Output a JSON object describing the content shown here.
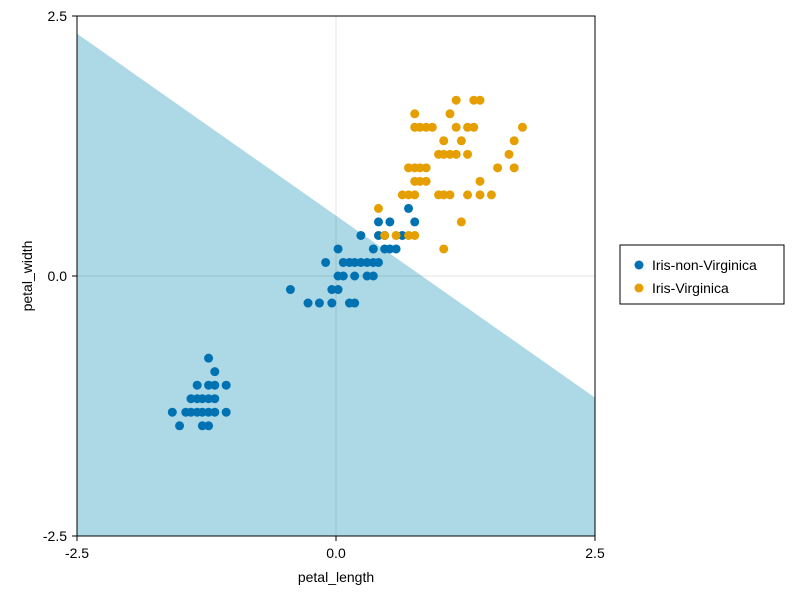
{
  "chart_data": {
    "type": "scatter",
    "xlabel": "petal_length",
    "ylabel": "petal_width",
    "xlim": [
      -2.5,
      2.5
    ],
    "ylim": [
      -2.5,
      2.5
    ],
    "x_ticks": [
      "-2.5",
      "0.0",
      "2.5"
    ],
    "y_ticks": [
      "-2.5",
      "0.0",
      "2.5"
    ],
    "grid": true,
    "legend_position": "right",
    "decision_region": {
      "label": "",
      "color": "#add8e6",
      "boundary_line": [
        [
          -2.5,
          2.33
        ],
        [
          2.5,
          -1.17
        ]
      ]
    },
    "series": [
      {
        "name": "Iris-non-Virginica",
        "color": "#0072b2",
        "points": [
          [
            -1.58,
            -1.31
          ],
          [
            -1.51,
            -1.44
          ],
          [
            -1.45,
            -1.31
          ],
          [
            -1.4,
            -1.31
          ],
          [
            -1.4,
            -1.18
          ],
          [
            -1.34,
            -1.31
          ],
          [
            -1.34,
            -1.18
          ],
          [
            -1.34,
            -1.05
          ],
          [
            -1.29,
            -1.44
          ],
          [
            -1.29,
            -1.31
          ],
          [
            -1.29,
            -1.18
          ],
          [
            -1.23,
            -1.44
          ],
          [
            -1.23,
            -1.31
          ],
          [
            -1.23,
            -1.05
          ],
          [
            -1.23,
            -1.18
          ],
          [
            -1.23,
            -0.79
          ],
          [
            -1.17,
            -1.31
          ],
          [
            -1.17,
            -1.05
          ],
          [
            -1.17,
            -0.92
          ],
          [
            -1.17,
            -1.18
          ],
          [
            -1.06,
            -1.31
          ],
          [
            -1.06,
            -1.05
          ],
          [
            -0.44,
            -0.13
          ],
          [
            -0.27,
            -0.26
          ],
          [
            -0.16,
            -0.26
          ],
          [
            -0.1,
            0.13
          ],
          [
            -0.04,
            -0.26
          ],
          [
            -0.04,
            -0.13
          ],
          [
            0.02,
            -0.13
          ],
          [
            0.02,
            0.0
          ],
          [
            0.02,
            0.26
          ],
          [
            0.07,
            0.0
          ],
          [
            0.07,
            0.13
          ],
          [
            0.13,
            -0.26
          ],
          [
            0.13,
            0.13
          ],
          [
            0.18,
            -0.26
          ],
          [
            0.18,
            0.0
          ],
          [
            0.18,
            0.13
          ],
          [
            0.24,
            0.13
          ],
          [
            0.24,
            0.39
          ],
          [
            0.3,
            0.0
          ],
          [
            0.3,
            0.13
          ],
          [
            0.36,
            0.13
          ],
          [
            0.36,
            0.26
          ],
          [
            0.36,
            0.0
          ],
          [
            0.41,
            0.13
          ],
          [
            0.41,
            0.39
          ],
          [
            0.41,
            0.52
          ],
          [
            0.47,
            0.26
          ],
          [
            0.47,
            0.39
          ],
          [
            0.52,
            0.26
          ],
          [
            0.52,
            0.52
          ],
          [
            0.58,
            0.26
          ],
          [
            0.64,
            0.39
          ],
          [
            0.7,
            0.65
          ],
          [
            0.76,
            0.52
          ]
        ]
      },
      {
        "name": "Iris-Virginica",
        "color": "#e69f00",
        "points": [
          [
            0.41,
            0.65
          ],
          [
            0.47,
            0.39
          ],
          [
            0.58,
            0.39
          ],
          [
            0.64,
            0.78
          ],
          [
            0.7,
            0.78
          ],
          [
            0.7,
            1.04
          ],
          [
            0.7,
            0.39
          ],
          [
            0.76,
            0.39
          ],
          [
            0.76,
            0.91
          ],
          [
            0.76,
            1.04
          ],
          [
            0.76,
            1.43
          ],
          [
            0.76,
            1.56
          ],
          [
            0.76,
            0.78
          ],
          [
            0.81,
            0.91
          ],
          [
            0.81,
            1.04
          ],
          [
            0.81,
            1.43
          ],
          [
            0.87,
            1.04
          ],
          [
            0.87,
            1.43
          ],
          [
            0.87,
            0.91
          ],
          [
            0.93,
            1.43
          ],
          [
            0.99,
            1.17
          ],
          [
            0.99,
            0.78
          ],
          [
            1.04,
            1.3
          ],
          [
            1.04,
            1.17
          ],
          [
            1.04,
            0.78
          ],
          [
            1.04,
            0.26
          ],
          [
            1.1,
            1.17
          ],
          [
            1.1,
            1.56
          ],
          [
            1.1,
            0.78
          ],
          [
            1.16,
            1.17
          ],
          [
            1.16,
            1.43
          ],
          [
            1.16,
            1.69
          ],
          [
            1.21,
            1.3
          ],
          [
            1.21,
            0.52
          ],
          [
            1.27,
            1.17
          ],
          [
            1.27,
            1.43
          ],
          [
            1.27,
            0.78
          ],
          [
            1.33,
            1.43
          ],
          [
            1.33,
            1.69
          ],
          [
            1.39,
            0.78
          ],
          [
            1.39,
            1.69
          ],
          [
            1.39,
            0.91
          ],
          [
            1.5,
            0.78
          ],
          [
            1.56,
            1.04
          ],
          [
            1.67,
            1.17
          ],
          [
            1.72,
            1.3
          ],
          [
            1.72,
            1.04
          ],
          [
            1.8,
            1.43
          ]
        ]
      }
    ]
  }
}
